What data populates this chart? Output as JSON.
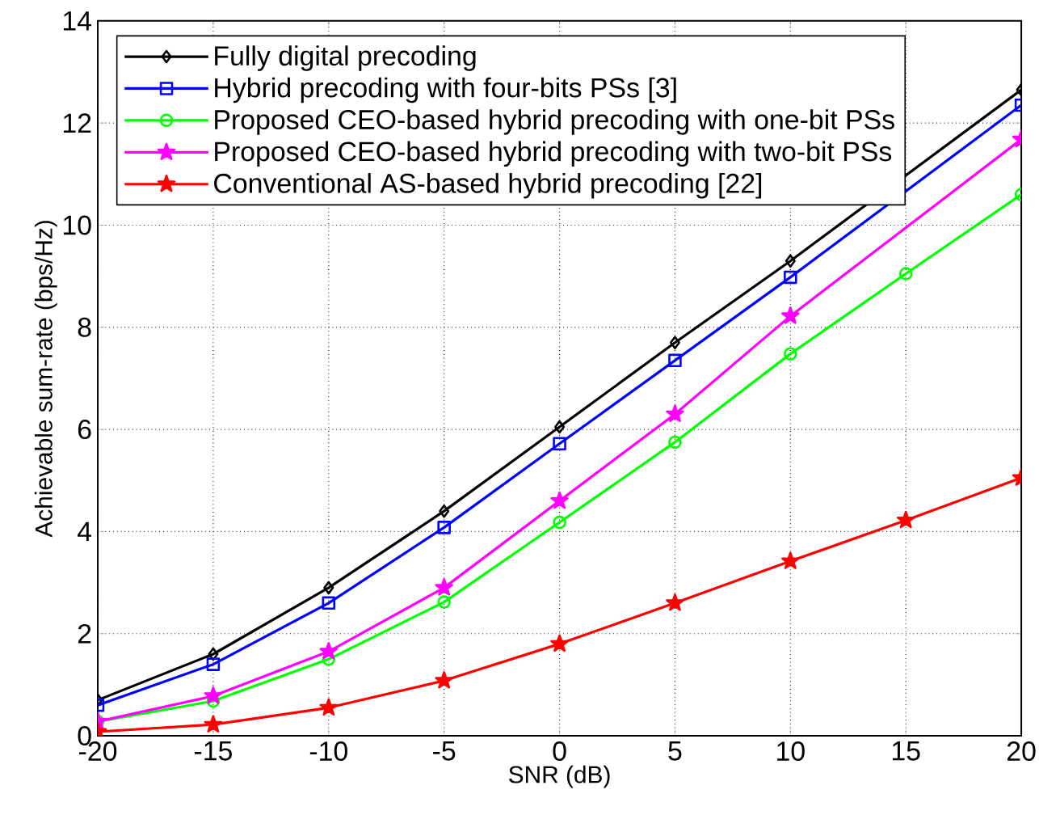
{
  "chart_data": {
    "type": "line",
    "xlabel": "SNR (dB)",
    "ylabel": "Achievable sum-rate (bps/Hz)",
    "x": [
      -20,
      -15,
      -10,
      -5,
      0,
      5,
      10,
      15,
      20
    ],
    "series": [
      {
        "name": "Fully digital precoding",
        "color": "#000000",
        "marker": "diamond",
        "values": [
          0.7,
          1.6,
          2.9,
          4.4,
          6.05,
          7.7,
          9.3,
          null,
          12.65
        ]
      },
      {
        "name": "Hybrid precoding with four-bits PSs [3]",
        "color": "#0000ff",
        "marker": "square",
        "values": [
          0.6,
          1.4,
          2.6,
          4.08,
          5.72,
          7.35,
          8.98,
          null,
          12.35
        ]
      },
      {
        "name": "Proposed CEO-based hybrid precoding with one-bit PSs",
        "color": "#00ff00",
        "marker": "circle",
        "values": [
          0.28,
          0.68,
          1.5,
          2.62,
          4.18,
          5.75,
          7.48,
          9.05,
          10.6
        ]
      },
      {
        "name": "Proposed CEO-based hybrid precoding with two-bit PSs",
        "color": "#ff00ff",
        "marker": "star",
        "values": [
          0.28,
          0.78,
          1.65,
          2.9,
          4.6,
          6.3,
          8.22,
          null,
          11.68
        ]
      },
      {
        "name": "Conventional AS-based hybrid precoding [22]",
        "color": "#ff0000",
        "marker": "star",
        "values": [
          0.08,
          0.22,
          0.55,
          1.08,
          1.8,
          2.6,
          3.42,
          4.22,
          5.05
        ]
      }
    ],
    "xlim": [
      -20,
      20
    ],
    "ylim": [
      0,
      14
    ],
    "xticks": [
      -20,
      -15,
      -10,
      -5,
      0,
      5,
      10,
      15,
      20
    ],
    "yticks": [
      0,
      2,
      4,
      6,
      8,
      10,
      12,
      14
    ],
    "grid": true,
    "legend": "top left",
    "line_style": "solid"
  }
}
